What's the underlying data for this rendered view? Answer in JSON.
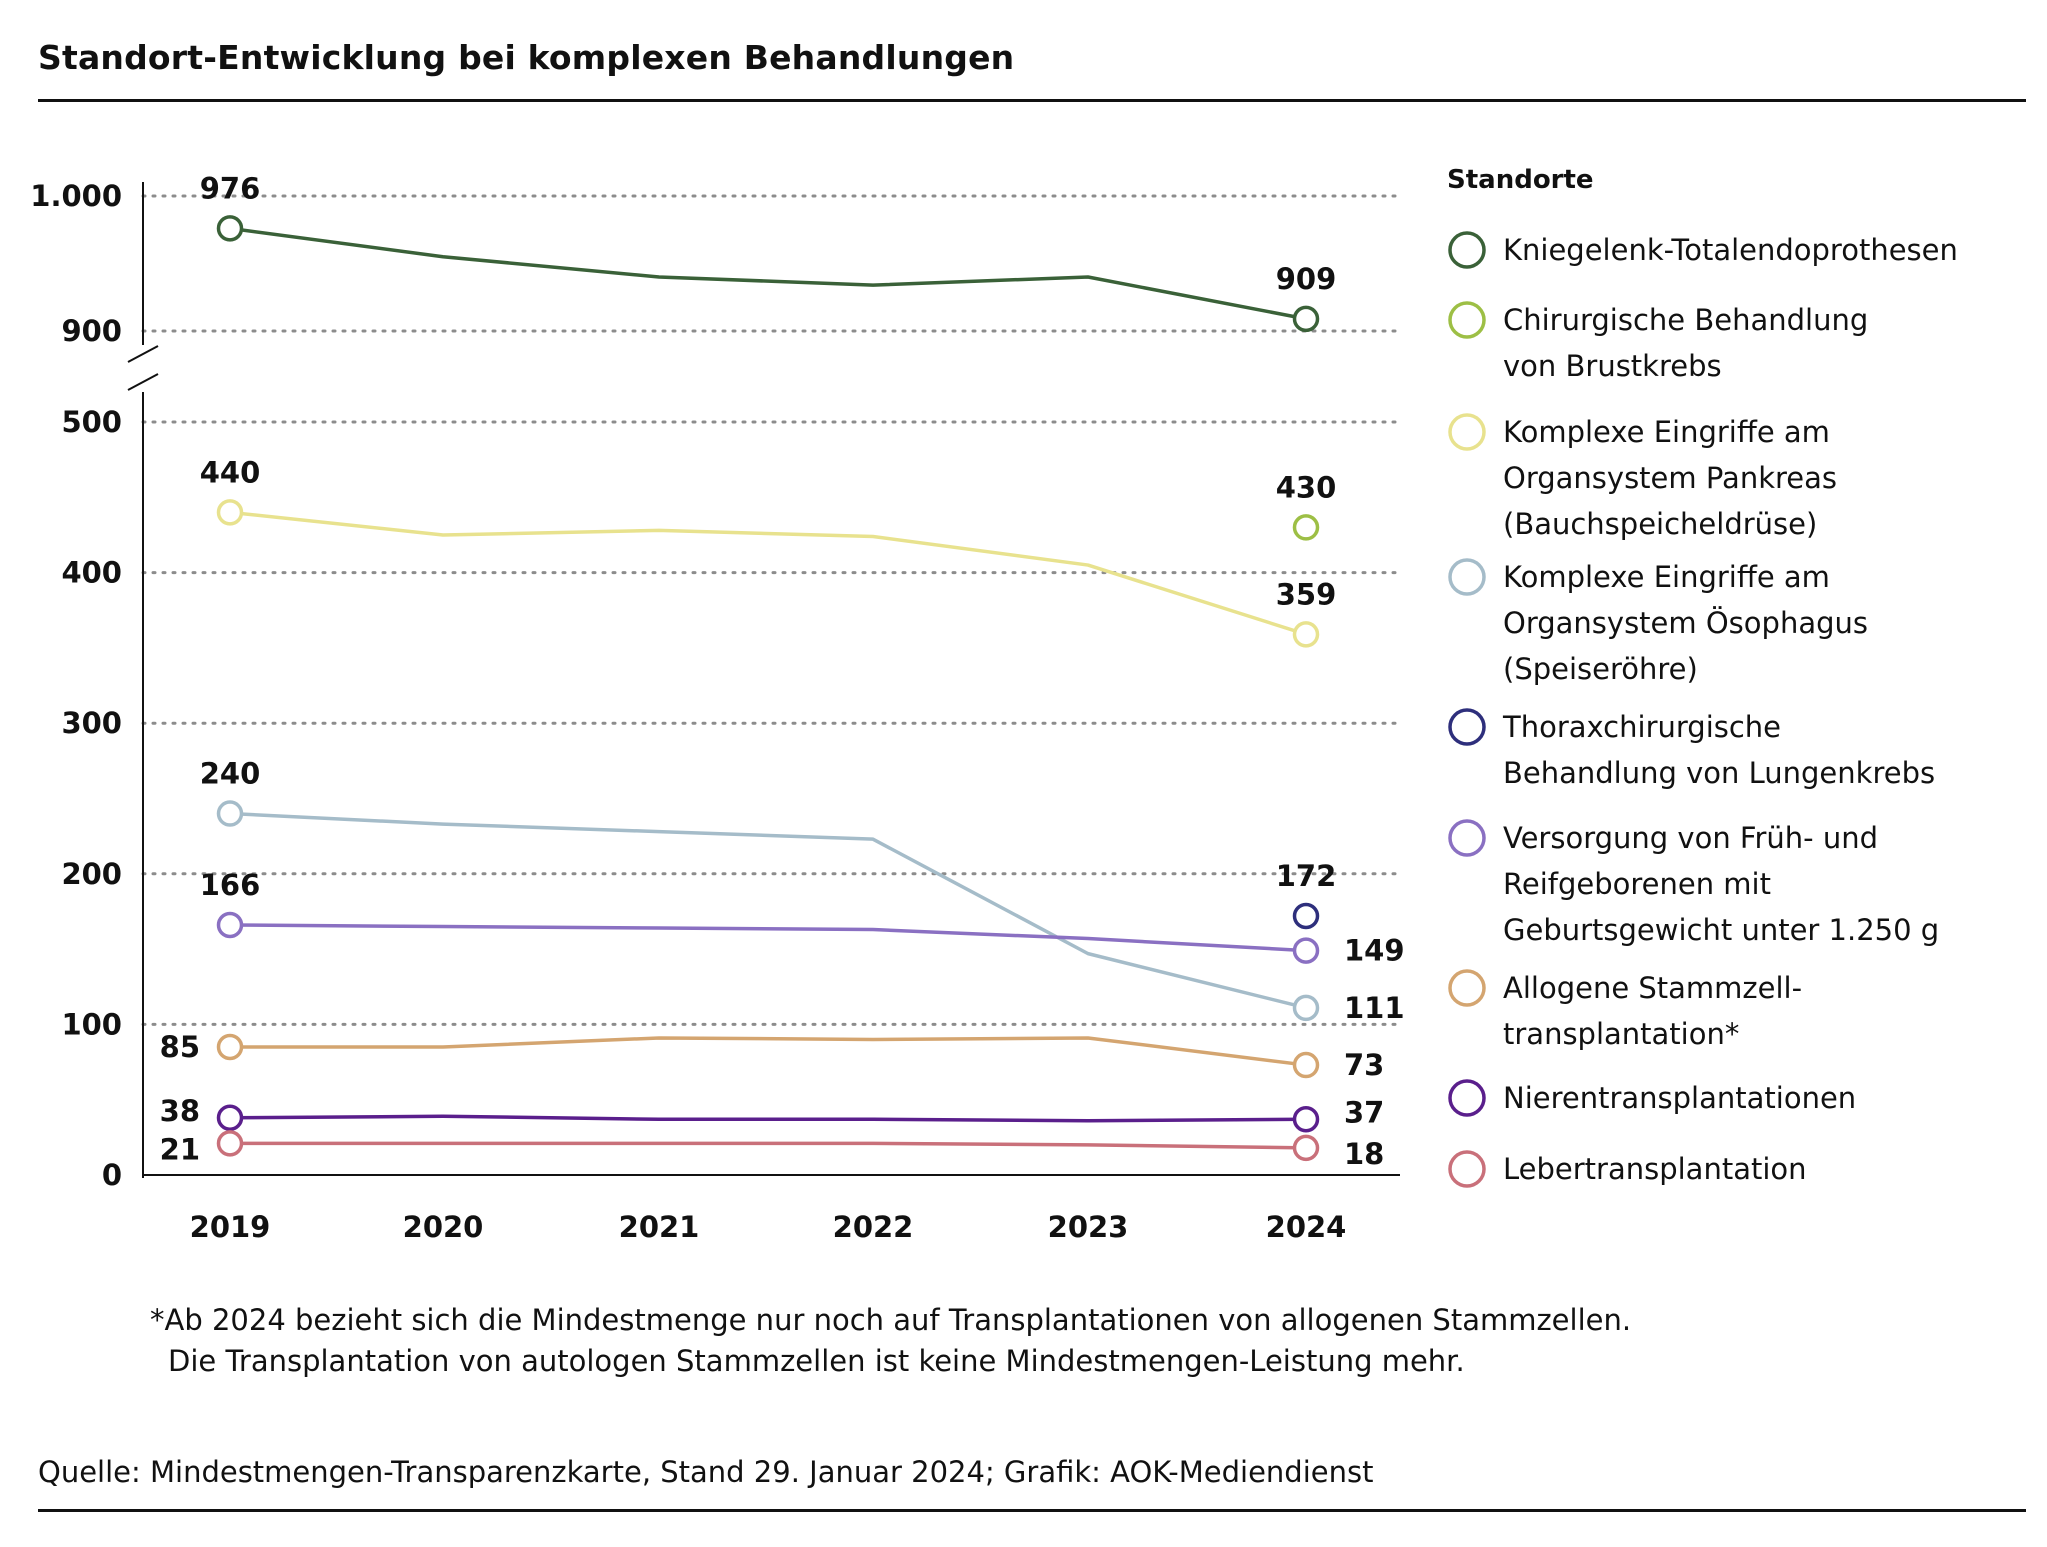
{
  "title": "Standort-Entwicklung bei komplexen Behandlungen",
  "footnote": {
    "line1": "*Ab 2024 bezieht sich die Mindestmenge nur noch auf Transplantationen von allogenen Stammzellen.",
    "line2": "Die Transplantation von autologen Stammzellen ist keine Mindestmengen-Leistung mehr."
  },
  "source": "Quelle: Mindestmengen-Transparenzkarte, Stand 29. Januar 2024; Grafik: AOK-Mediendienst",
  "chart_data": {
    "type": "line",
    "title": "Standort-Entwicklung bei komplexen Behandlungen",
    "xlabel": "",
    "ylabel": "",
    "legend_title": "Standorte",
    "legend_position": "right",
    "grid": "dotted horizontal",
    "axis_break": "between 500 and 900",
    "x": [
      "2019",
      "2020",
      "2021",
      "2022",
      "2023",
      "2024"
    ],
    "y_ticks": [
      0,
      100,
      200,
      300,
      400,
      500,
      900,
      1000
    ],
    "y_tick_labels": [
      "0",
      "100",
      "200",
      "300",
      "400",
      "500",
      "900",
      "1.000"
    ],
    "series": [
      {
        "name": "Kniegelenk-Totalendoprothesen",
        "color": "#3a6138",
        "values": [
          976,
          955,
          940,
          934,
          940,
          909
        ],
        "label_first": "976",
        "label_last": "909"
      },
      {
        "name": "Chirurgische Behandlung von Brustkrebs",
        "color": "#9dbf45",
        "values": [
          null,
          null,
          null,
          null,
          null,
          430
        ],
        "label_first": "",
        "label_last": "430"
      },
      {
        "name": "Komplexe Eingriffe am Organsystem Pankreas (Bauchspeicheldrüse)",
        "color": "#e8e28e",
        "values": [
          440,
          425,
          428,
          424,
          405,
          359
        ],
        "label_first": "440",
        "label_last": "359"
      },
      {
        "name": "Komplexe Eingriffe am Organsystem Ösophagus (Speiseröhre)",
        "color": "#a5bcc9",
        "values": [
          240,
          233,
          228,
          223,
          147,
          111
        ],
        "label_first": "240",
        "label_last": "111"
      },
      {
        "name": "Thoraxchirurgische Behandlung von Lungenkrebs",
        "color": "#2e2f7c",
        "values": [
          null,
          null,
          null,
          null,
          null,
          172
        ],
        "label_first": "",
        "label_last": "172"
      },
      {
        "name": "Versorgung von Früh- und Reifgeborenen mit Geburtsgewicht unter 1.250 g",
        "color": "#8a70c2",
        "values": [
          166,
          165,
          164,
          163,
          157,
          149
        ],
        "label_first": "166",
        "label_last": "149"
      },
      {
        "name": "Allogene Stammzell-transplantation*",
        "color": "#d4a570",
        "values": [
          85,
          85,
          91,
          90,
          91,
          73
        ],
        "label_first": "85",
        "label_last": "73"
      },
      {
        "name": "Nierentransplantationen",
        "color": "#5a1f8c",
        "values": [
          38,
          39,
          37,
          37,
          36,
          37
        ],
        "label_first": "38",
        "label_last": "37"
      },
      {
        "name": "Lebertransplantation",
        "color": "#c9707a",
        "values": [
          21,
          21,
          21,
          21,
          20,
          18
        ],
        "label_first": "21",
        "label_last": "18"
      }
    ],
    "legend_lines": [
      [
        "Kniegelenk-Totalendoprothesen"
      ],
      [
        "Chirurgische Behandlung",
        "von Brustkrebs"
      ],
      [
        "Komplexe Eingriffe am",
        "Organsystem Pankreas",
        "(Bauchspeicheldrüse)"
      ],
      [
        "Komplexe Eingriffe am",
        "Organsystem Ösophagus",
        "(Speiseröhre)"
      ],
      [
        "Thoraxchirurgische",
        "Behandlung von Lungenkrebs"
      ],
      [
        "Versorgung von Früh- und",
        "Reifgeborenen mit",
        "Geburtsgewicht unter 1.250 g"
      ],
      [
        "Allogene Stammzell-",
        "transplantation*"
      ],
      [
        "Nierentransplantationen"
      ],
      [
        "Lebertransplantation"
      ]
    ]
  }
}
